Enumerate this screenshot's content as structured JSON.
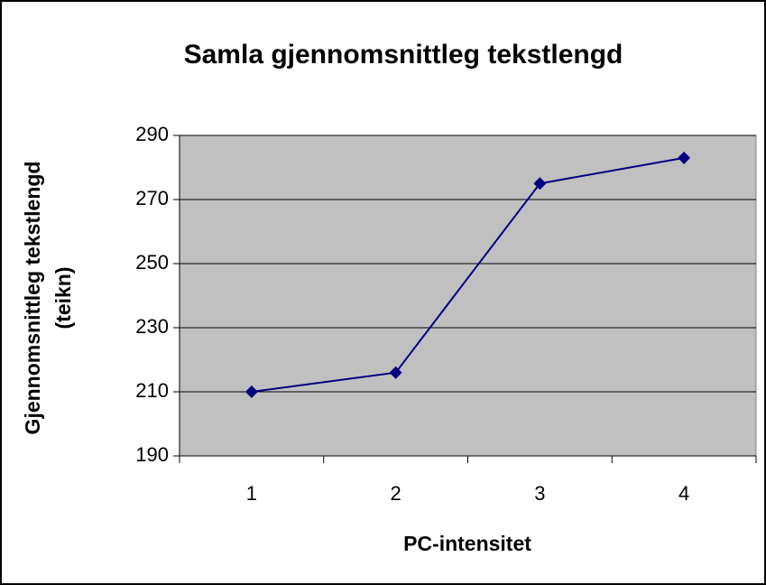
{
  "chart_data": {
    "type": "line",
    "title": "Samla gjennomsnittleg tekstlengd",
    "xlabel": "PC-intensitet",
    "ylabel": [
      "Gjennomsnittleg tekstlengd",
      "(teikn)"
    ],
    "categories": [
      "1",
      "2",
      "3",
      "4"
    ],
    "series": [
      {
        "name": "Samla gjennomsnittleg tekstlengd",
        "color": "#000080",
        "values": [
          210,
          216,
          275,
          283
        ]
      }
    ],
    "ylim": [
      190,
      290
    ],
    "yticks": [
      190,
      210,
      230,
      250,
      270,
      290
    ],
    "grid": true
  }
}
